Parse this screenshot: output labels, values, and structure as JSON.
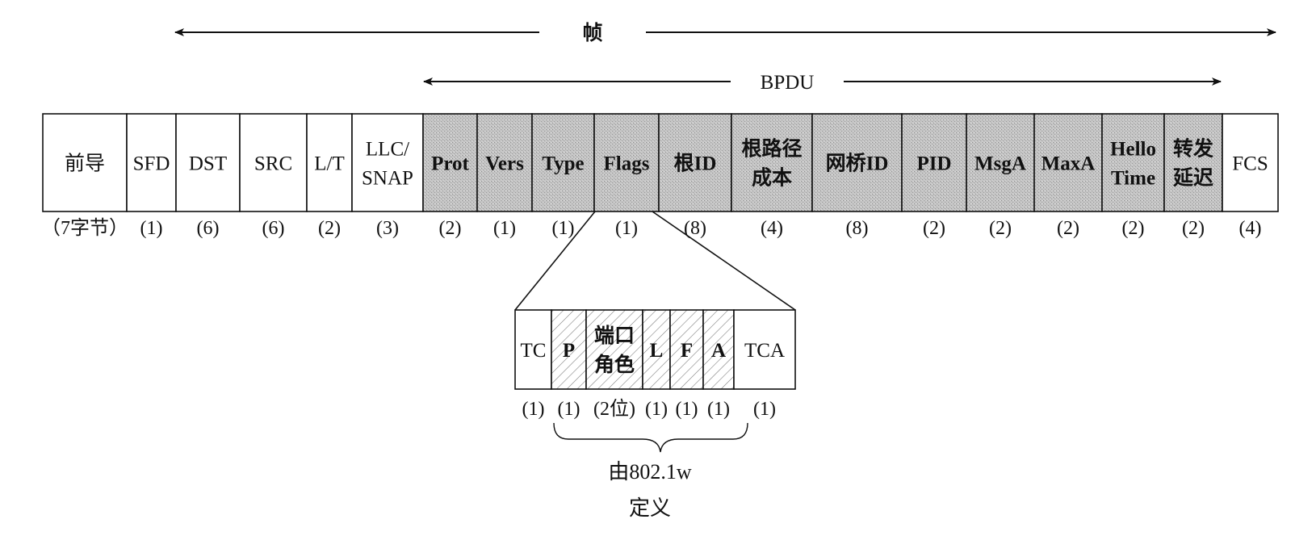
{
  "spans": {
    "frame": "帧",
    "bpdu": "BPDU"
  },
  "fields": [
    {
      "lines": [
        "前导"
      ],
      "size": "（7字节）",
      "style": "plain"
    },
    {
      "lines": [
        "SFD"
      ],
      "size": "(1)",
      "style": "plain"
    },
    {
      "lines": [
        "DST"
      ],
      "size": "(6)",
      "style": "plain"
    },
    {
      "lines": [
        "SRC"
      ],
      "size": "(6)",
      "style": "plain"
    },
    {
      "lines": [
        "L/T"
      ],
      "size": "(2)",
      "style": "plain"
    },
    {
      "lines": [
        "LLC/",
        "SNAP"
      ],
      "size": "(3)",
      "style": "plain"
    },
    {
      "lines": [
        "Prot"
      ],
      "size": "(2)",
      "style": "shaded"
    },
    {
      "lines": [
        "Vers"
      ],
      "size": "(1)",
      "style": "shaded"
    },
    {
      "lines": [
        "Type"
      ],
      "size": "(1)",
      "style": "shaded"
    },
    {
      "lines": [
        "Flags"
      ],
      "size": "(1)",
      "style": "shaded"
    },
    {
      "lines": [
        "根ID"
      ],
      "size": "(8)",
      "style": "shaded"
    },
    {
      "lines": [
        "根路径",
        "成本"
      ],
      "size": "(4)",
      "style": "shaded"
    },
    {
      "lines": [
        "网桥ID"
      ],
      "size": "(8)",
      "style": "shaded"
    },
    {
      "lines": [
        "PID"
      ],
      "size": "(2)",
      "style": "shaded"
    },
    {
      "lines": [
        "MsgA"
      ],
      "size": "(2)",
      "style": "shaded"
    },
    {
      "lines": [
        "MaxA"
      ],
      "size": "(2)",
      "style": "shaded"
    },
    {
      "lines": [
        "Hello",
        "Time"
      ],
      "size": "(2)",
      "style": "shaded"
    },
    {
      "lines": [
        "转发",
        "延迟"
      ],
      "size": "(2)",
      "style": "shaded"
    },
    {
      "lines": [
        "FCS"
      ],
      "size": "(4)",
      "style": "plain"
    }
  ],
  "flags": [
    {
      "lines": [
        "TC"
      ],
      "size": "(1)",
      "style": "plain"
    },
    {
      "lines": [
        "P"
      ],
      "size": "(1)",
      "style": "hatched"
    },
    {
      "lines": [
        "端口",
        "角色"
      ],
      "size": "(2位)",
      "style": "hatched"
    },
    {
      "lines": [
        "L"
      ],
      "size": "(1)",
      "style": "hatched"
    },
    {
      "lines": [
        "F"
      ],
      "size": "(1)",
      "style": "hatched"
    },
    {
      "lines": [
        "A"
      ],
      "size": "(1)",
      "style": "hatched"
    },
    {
      "lines": [
        "TCA"
      ],
      "size": "(1)",
      "style": "plain"
    }
  ],
  "note": [
    "由802.1w",
    "定义"
  ]
}
